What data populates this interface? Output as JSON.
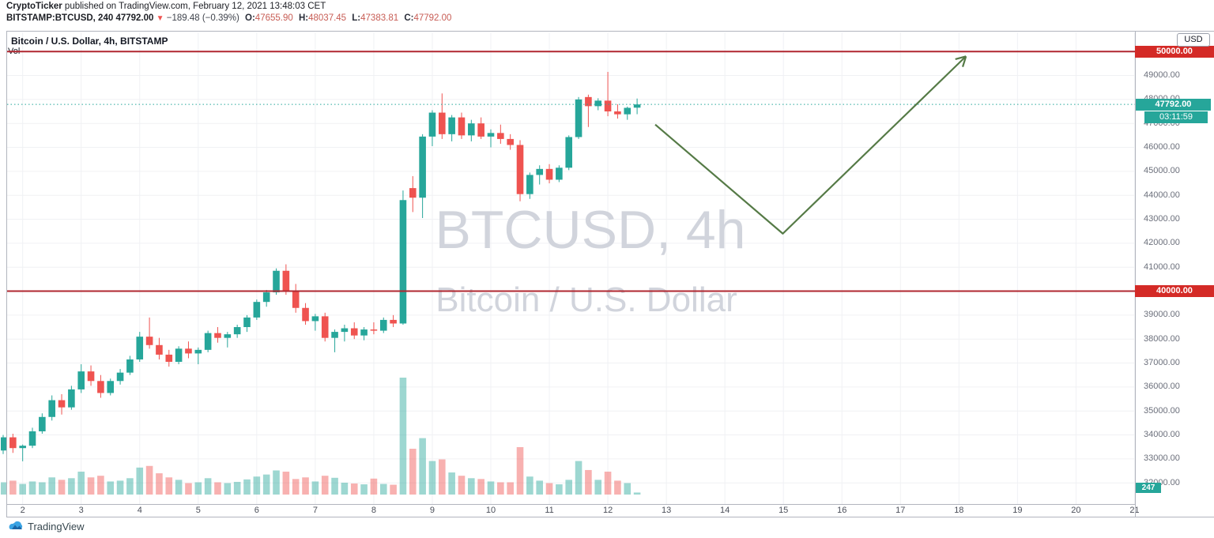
{
  "header": {
    "byline_bold": "CryptoTicker",
    "byline_rest": " published on TradingView.com, February 12, 2021 13:48:03 CET",
    "symbol_line": {
      "symbol": "BITSTAMP:BTCUSD, 240",
      "last_price": "47792.00",
      "direction_icon": "▼",
      "change": "−189.48 (−0.39%)",
      "o_label": "O:",
      "o": "47655.90",
      "h_label": "H:",
      "h": "48037.45",
      "l_label": "L:",
      "l": "47383.81",
      "c_label": "C:",
      "c": "47792.00"
    }
  },
  "chart": {
    "legend": "Bitcoin / U.S. Dollar, 4h, BITSTAMP",
    "vol_label": "Vol",
    "watermark_line1": "BTCUSD, 4h",
    "watermark_line2": "Bitcoin / U.S. Dollar",
    "currency_button": "USD",
    "price_label": "47792.00",
    "countdown": "03:11:59",
    "volume_value": "247",
    "levels": [
      {
        "value": "50000.00",
        "price": 50000
      },
      {
        "value": "40000.00",
        "price": 40000
      }
    ],
    "colors": {
      "up": "#26a69a",
      "down": "#ef5350",
      "up_volume": "rgba(38,166,154,0.45)",
      "down_volume": "rgba(239,83,80,0.45)",
      "level_line": "#b02730",
      "level_label_bg": "#d42a26",
      "price_label_bg": "#26a69a",
      "arrow": "#557a46",
      "grid": "#f0f1f4",
      "watermark": "#d1d4dc"
    }
  },
  "footer": {
    "logo_text": "TradingView"
  },
  "chart_data": {
    "type": "candlestick",
    "symbol": "BTCUSD",
    "exchange": "BITSTAMP",
    "timeframe": "4h",
    "title": "Bitcoin / U.S. Dollar, 4h, BITSTAMP",
    "start_time": "2021-02-01 16:00",
    "interval_hours": 4,
    "price_range_visible": [
      31100,
      50800
    ],
    "y_ticks": [
      49000,
      48000,
      47000,
      46000,
      45000,
      44000,
      43000,
      42000,
      41000,
      40000,
      39000,
      38000,
      37000,
      36000,
      35000,
      34000,
      33000,
      32000
    ],
    "x_ticks_days_feb_2021": [
      2,
      3,
      4,
      5,
      6,
      7,
      8,
      9,
      10,
      11,
      12,
      13,
      14,
      15,
      16,
      17,
      18,
      19,
      20,
      21
    ],
    "grid": true,
    "horizontal_levels": [
      50000,
      40000
    ],
    "current_price": 47792.0,
    "current_bar": {
      "open": 47655.9,
      "high": 48037.45,
      "low": 47383.81,
      "close": 47792.0,
      "volume": 247,
      "countdown": "03:11:59"
    },
    "candles_ohlcv": [
      [
        33350,
        34000,
        33200,
        33900,
        1500
      ],
      [
        33900,
        34050,
        33250,
        33450,
        1700
      ],
      [
        33450,
        33600,
        32900,
        33550,
        1300
      ],
      [
        33550,
        34300,
        33450,
        34150,
        1600
      ],
      [
        34150,
        34900,
        34050,
        34750,
        1500
      ],
      [
        34750,
        35650,
        34600,
        35450,
        2100
      ],
      [
        35450,
        35700,
        34850,
        35150,
        1800
      ],
      [
        35150,
        36050,
        35050,
        35900,
        2000
      ],
      [
        35900,
        36950,
        35750,
        36650,
        2800
      ],
      [
        36650,
        36900,
        36050,
        36250,
        2100
      ],
      [
        36250,
        36500,
        35550,
        35750,
        2300
      ],
      [
        35750,
        36350,
        35650,
        36250,
        1600
      ],
      [
        36250,
        36750,
        36100,
        36600,
        1700
      ],
      [
        36600,
        37300,
        36500,
        37150,
        2000
      ],
      [
        37150,
        38300,
        37050,
        38100,
        3300
      ],
      [
        38100,
        38900,
        37600,
        37750,
        3500
      ],
      [
        37750,
        38050,
        37150,
        37350,
        2600
      ],
      [
        37350,
        37550,
        36850,
        37050,
        2100
      ],
      [
        37050,
        37700,
        36950,
        37600,
        1800
      ],
      [
        37600,
        37900,
        37200,
        37400,
        1400
      ],
      [
        37400,
        37650,
        36950,
        37550,
        1500
      ],
      [
        37550,
        38350,
        37450,
        38250,
        2000
      ],
      [
        38250,
        38500,
        37850,
        38050,
        1500
      ],
      [
        38050,
        38300,
        37650,
        38200,
        1400
      ],
      [
        38200,
        38600,
        38050,
        38500,
        1550
      ],
      [
        38500,
        39000,
        38300,
        38900,
        1850
      ],
      [
        38900,
        39650,
        38800,
        39550,
        2200
      ],
      [
        39550,
        40050,
        39350,
        39950,
        2450
      ],
      [
        39950,
        40950,
        39850,
        40850,
        2950
      ],
      [
        40850,
        41120,
        39850,
        40000,
        2800
      ],
      [
        40000,
        40300,
        39100,
        39300,
        1900
      ],
      [
        39300,
        39500,
        38600,
        38750,
        2100
      ],
      [
        38750,
        39050,
        38350,
        38950,
        1600
      ],
      [
        38950,
        39100,
        37900,
        38050,
        2300
      ],
      [
        38050,
        38400,
        37450,
        38300,
        2050
      ],
      [
        38300,
        38600,
        37900,
        38450,
        1450
      ],
      [
        38450,
        38700,
        38000,
        38150,
        1350
      ],
      [
        38150,
        38500,
        37950,
        38400,
        1250
      ],
      [
        38400,
        38700,
        38200,
        38350,
        1950
      ],
      [
        38350,
        38900,
        38250,
        38800,
        1300
      ],
      [
        38800,
        39000,
        38500,
        38650,
        1200
      ],
      [
        38650,
        44200,
        38600,
        43800,
        14300
      ],
      [
        44300,
        44800,
        43300,
        43900,
        5600
      ],
      [
        43900,
        46550,
        43050,
        46450,
        6900
      ],
      [
        46450,
        47550,
        46050,
        47450,
        4100
      ],
      [
        47450,
        48250,
        46350,
        46550,
        4300
      ],
      [
        46550,
        47350,
        46250,
        47250,
        2700
      ],
      [
        47250,
        47450,
        46350,
        46500,
        2300
      ],
      [
        46500,
        47150,
        46250,
        47000,
        2000
      ],
      [
        47000,
        47250,
        46350,
        46450,
        1900
      ],
      [
        46450,
        46750,
        46000,
        46600,
        1600
      ],
      [
        46600,
        46950,
        46150,
        46350,
        1500
      ],
      [
        46350,
        46550,
        45900,
        46100,
        1500
      ],
      [
        46100,
        46300,
        43750,
        44050,
        5800
      ],
      [
        44050,
        44950,
        43850,
        44850,
        2200
      ],
      [
        44850,
        45250,
        44450,
        45100,
        1700
      ],
      [
        45100,
        45300,
        44500,
        44650,
        1400
      ],
      [
        44650,
        45250,
        44550,
        45150,
        1250
      ],
      [
        45150,
        46500,
        45050,
        46430,
        1800
      ],
      [
        46430,
        48100,
        46350,
        48000,
        4100
      ],
      [
        48100,
        48200,
        46850,
        47720,
        3000
      ],
      [
        47720,
        48050,
        47550,
        47950,
        1800
      ],
      [
        47950,
        49150,
        47300,
        47500,
        2800
      ],
      [
        47500,
        47800,
        47200,
        47380,
        1700
      ],
      [
        47380,
        47700,
        47150,
        47650,
        1400
      ],
      [
        47655.9,
        48037.45,
        47383.81,
        47792.0,
        247
      ]
    ],
    "trend_arrow_day_price": [
      [
        12.81,
        46950
      ],
      [
        14.99,
        42400
      ],
      [
        18.12,
        49800
      ]
    ],
    "legend_position": "top-left"
  }
}
